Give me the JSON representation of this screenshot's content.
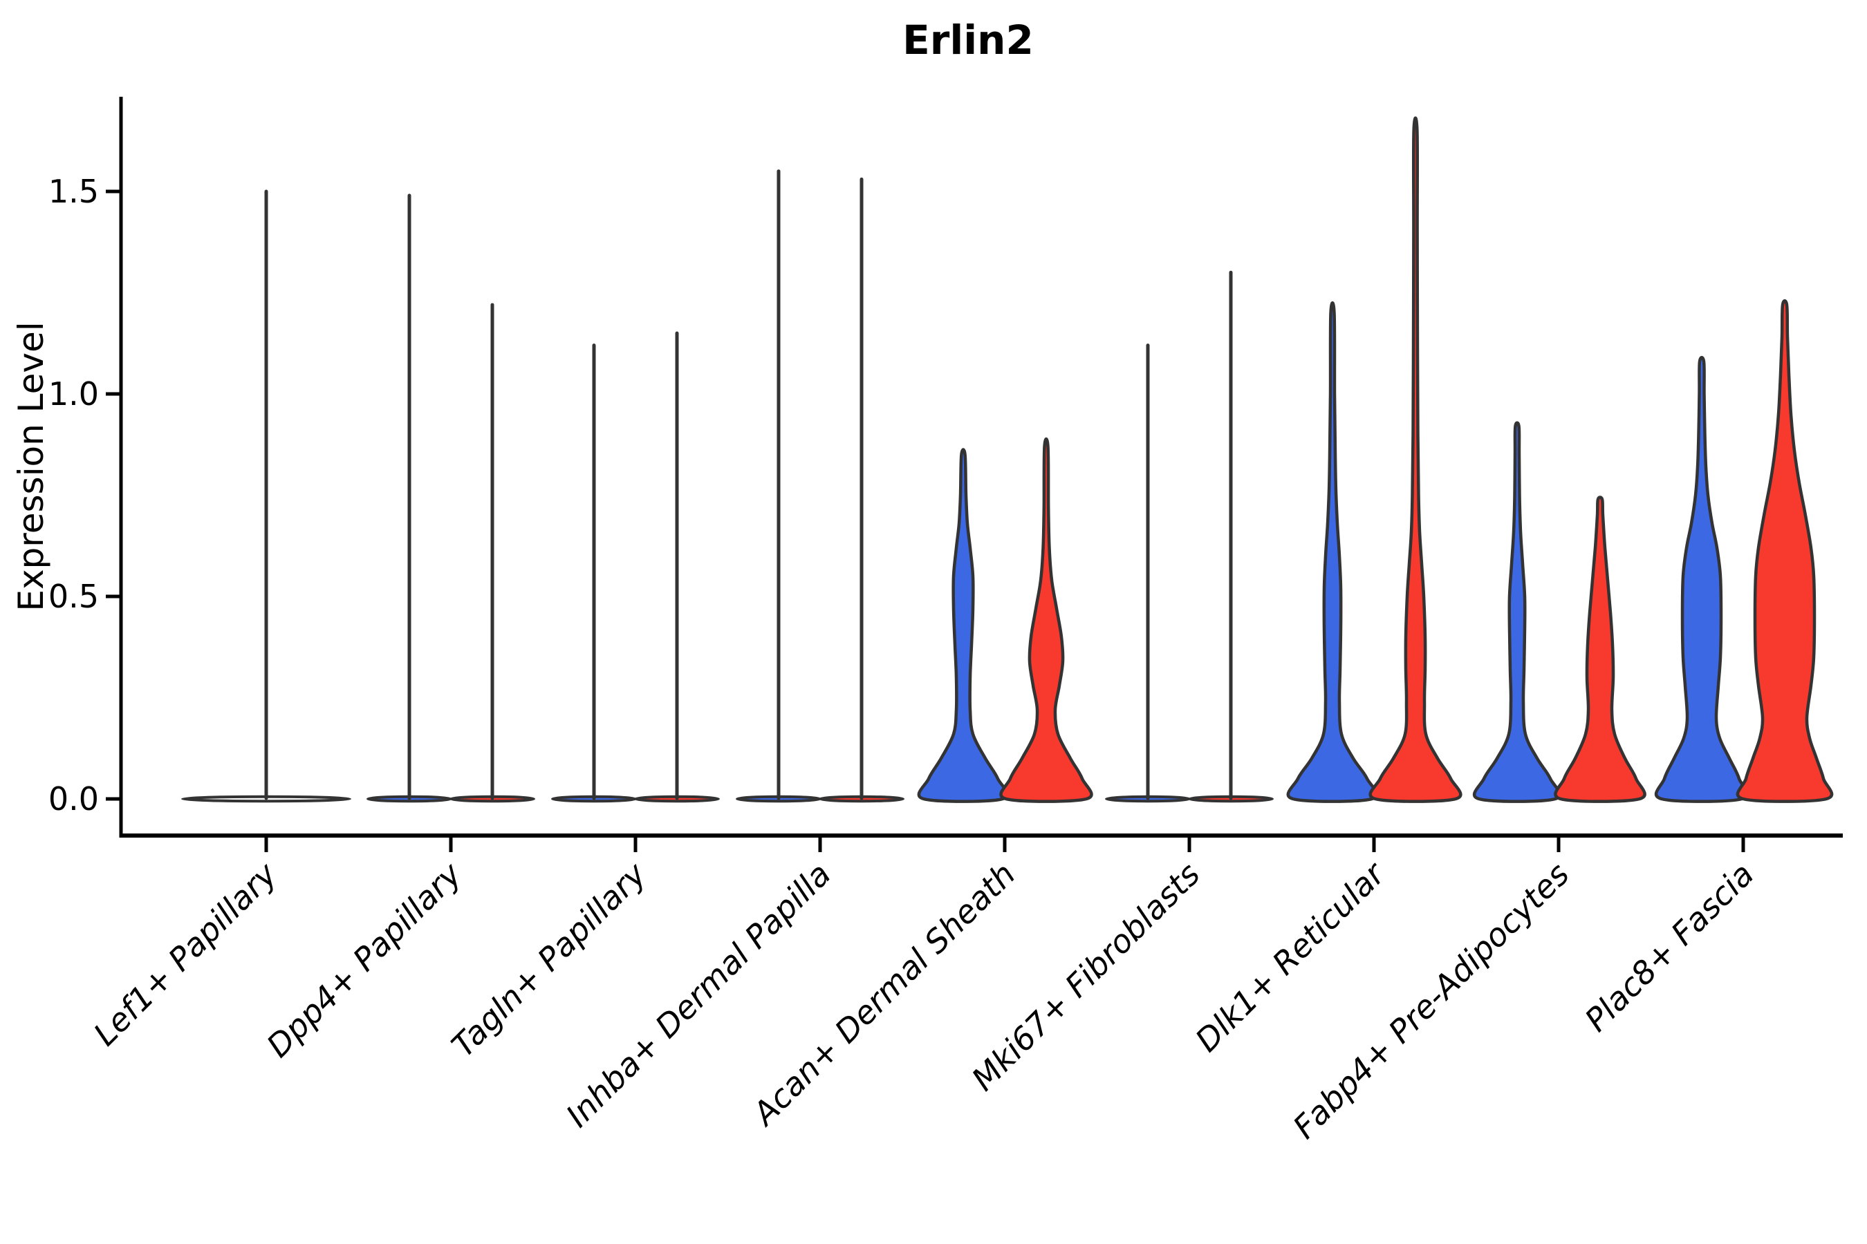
{
  "title": "Erlin2",
  "chart_data": {
    "type": "violin",
    "title": "Erlin2",
    "ylabel": "Expression Level",
    "xlabel": "",
    "ylim": [
      -0.09,
      1.73
    ],
    "yticks": [
      0.0,
      0.5,
      1.0,
      1.5
    ],
    "ytick_labels": [
      "0.0",
      "0.5",
      "1.0",
      "1.5"
    ],
    "grid": "off",
    "legend": "none",
    "x_label_rotation_deg": 45,
    "colors": {
      "blue": "#3C68E3",
      "red": "#F8392E",
      "outline": "#333333",
      "axis": "#000000",
      "none": "#FFFFFF"
    },
    "categories": [
      {
        "label": "Lef1+ Papillary",
        "violins": [
          {
            "group": "none",
            "style": "flat",
            "max": 1.5
          }
        ]
      },
      {
        "label": "Dpp4+ Papillary",
        "violins": [
          {
            "group": "blue",
            "style": "flat",
            "max": 1.49
          },
          {
            "group": "red",
            "style": "flat",
            "max": 1.22
          }
        ]
      },
      {
        "label": "Tagln+ Papillary",
        "violins": [
          {
            "group": "blue",
            "style": "flat",
            "max": 1.12
          },
          {
            "group": "red",
            "style": "flat",
            "max": 1.15
          }
        ]
      },
      {
        "label": "Inhba+ Dermal Papilla",
        "violins": [
          {
            "group": "blue",
            "style": "flat",
            "max": 1.55
          },
          {
            "group": "red",
            "style": "flat",
            "max": 1.53
          }
        ]
      },
      {
        "label": "Acan+ Dermal Sheath",
        "violins": [
          {
            "group": "blue",
            "style": "body",
            "max": 0.85,
            "profile": [
              [
                0,
                57
              ],
              [
                0.05,
                50
              ],
              [
                0.1,
                32
              ],
              [
                0.16,
                14
              ],
              [
                0.22,
                10
              ],
              [
                0.3,
                10
              ],
              [
                0.38,
                12
              ],
              [
                0.47,
                14
              ],
              [
                0.55,
                14
              ],
              [
                0.62,
                10
              ],
              [
                0.68,
                6
              ],
              [
                0.75,
                4
              ],
              [
                0.85,
                2.6
              ]
            ]
          },
          {
            "group": "red",
            "style": "body",
            "max": 0.87,
            "profile": [
              [
                0,
                58
              ],
              [
                0.05,
                52
              ],
              [
                0.1,
                35
              ],
              [
                0.16,
                17
              ],
              [
                0.22,
                13
              ],
              [
                0.28,
                19
              ],
              [
                0.34,
                24
              ],
              [
                0.4,
                22
              ],
              [
                0.47,
                15
              ],
              [
                0.54,
                8
              ],
              [
                0.62,
                4.5
              ],
              [
                0.72,
                3.2
              ],
              [
                0.87,
                2.5
              ]
            ]
          }
        ]
      },
      {
        "label": "Mki67+ Fibroblasts",
        "violins": [
          {
            "group": "blue",
            "style": "flat",
            "max": 1.12
          },
          {
            "group": "red",
            "style": "flat",
            "max": 1.3
          }
        ]
      },
      {
        "label": "Dlk1+ Reticular",
        "violins": [
          {
            "group": "blue",
            "style": "body",
            "max": 1.2,
            "profile": [
              [
                0,
                57
              ],
              [
                0.05,
                50
              ],
              [
                0.1,
                30
              ],
              [
                0.16,
                13
              ],
              [
                0.24,
                10
              ],
              [
                0.32,
                11
              ],
              [
                0.42,
                12
              ],
              [
                0.52,
                12
              ],
              [
                0.6,
                10
              ],
              [
                0.68,
                7
              ],
              [
                0.76,
                5
              ],
              [
                0.85,
                4
              ],
              [
                1.0,
                3
              ],
              [
                1.2,
                2.5
              ]
            ]
          },
          {
            "group": "red",
            "style": "body",
            "max": 1.65,
            "profile": [
              [
                0,
                58
              ],
              [
                0.05,
                51
              ],
              [
                0.1,
                32
              ],
              [
                0.16,
                15
              ],
              [
                0.24,
                13
              ],
              [
                0.32,
                14
              ],
              [
                0.4,
                14
              ],
              [
                0.5,
                12
              ],
              [
                0.58,
                9
              ],
              [
                0.66,
                6
              ],
              [
                0.75,
                4.5
              ],
              [
                0.9,
                3.5
              ],
              [
                1.1,
                3
              ],
              [
                1.4,
                2.6
              ],
              [
                1.65,
                2.4
              ]
            ]
          }
        ]
      },
      {
        "label": "Fabp4+ Pre-Adipocytes",
        "violins": [
          {
            "group": "blue",
            "style": "body",
            "max": 0.92,
            "profile": [
              [
                0,
                55
              ],
              [
                0.05,
                48
              ],
              [
                0.1,
                29
              ],
              [
                0.16,
                12
              ],
              [
                0.24,
                9
              ],
              [
                0.32,
                10
              ],
              [
                0.42,
                11
              ],
              [
                0.5,
                11
              ],
              [
                0.58,
                8
              ],
              [
                0.66,
                5
              ],
              [
                0.75,
                3.5
              ],
              [
                0.85,
                3
              ],
              [
                0.92,
                2.6
              ]
            ]
          },
          {
            "group": "red",
            "style": "body",
            "max": 0.74,
            "profile": [
              [
                0,
                57
              ],
              [
                0.05,
                52
              ],
              [
                0.1,
                36
              ],
              [
                0.16,
                21
              ],
              [
                0.22,
                17
              ],
              [
                0.3,
                19
              ],
              [
                0.38,
                18
              ],
              [
                0.46,
                15
              ],
              [
                0.54,
                11
              ],
              [
                0.62,
                7
              ],
              [
                0.7,
                4
              ],
              [
                0.74,
                3
              ]
            ]
          }
        ]
      },
      {
        "label": "Plac8+ Fascia",
        "violins": [
          {
            "group": "blue",
            "style": "body",
            "max": 1.08,
            "profile": [
              [
                0,
                58
              ],
              [
                0.05,
                54
              ],
              [
                0.1,
                40
              ],
              [
                0.15,
                26
              ],
              [
                0.2,
                21
              ],
              [
                0.28,
                24
              ],
              [
                0.35,
                27
              ],
              [
                0.45,
                28
              ],
              [
                0.55,
                27
              ],
              [
                0.62,
                22
              ],
              [
                0.68,
                15
              ],
              [
                0.75,
                9
              ],
              [
                0.82,
                6
              ],
              [
                0.9,
                4.5
              ],
              [
                1.0,
                3.5
              ],
              [
                1.08,
                3
              ]
            ]
          },
          {
            "group": "red",
            "style": "body",
            "max": 1.22,
            "profile": [
              [
                0,
                60
              ],
              [
                0.05,
                56
              ],
              [
                0.1,
                46
              ],
              [
                0.15,
                36
              ],
              [
                0.2,
                32
              ],
              [
                0.28,
                38
              ],
              [
                0.35,
                42
              ],
              [
                0.45,
                43
              ],
              [
                0.55,
                42
              ],
              [
                0.62,
                38
              ],
              [
                0.7,
                30
              ],
              [
                0.78,
                21
              ],
              [
                0.86,
                14
              ],
              [
                0.95,
                9
              ],
              [
                1.05,
                6
              ],
              [
                1.14,
                4
              ],
              [
                1.22,
                3
              ]
            ]
          }
        ]
      }
    ]
  }
}
